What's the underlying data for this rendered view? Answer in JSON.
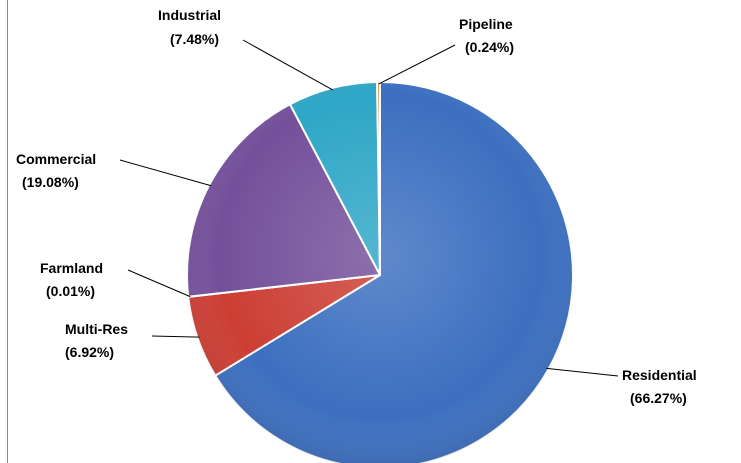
{
  "chart_data": {
    "type": "pie",
    "title": "",
    "slices": [
      {
        "name": "Residential",
        "percent_label": "(66.27%)",
        "value": 66.27,
        "color": "#3c6fc0"
      },
      {
        "name": "Multi-Res",
        "percent_label": "(6.92%)",
        "value": 6.92,
        "color": "#cc3e34"
      },
      {
        "name": "Farmland",
        "percent_label": "(0.01%)",
        "value": 0.01,
        "color": "#8fb24a"
      },
      {
        "name": "Commercial",
        "percent_label": "(19.08%)",
        "value": 19.08,
        "color": "#74509a"
      },
      {
        "name": "Industrial",
        "percent_label": "(7.48%)",
        "value": 7.48,
        "color": "#2ea6c6"
      },
      {
        "name": "Pipeline",
        "percent_label": "(0.24%)",
        "value": 0.24,
        "color": "#e8892b"
      }
    ],
    "legend": "none",
    "data_labels": "outside with leader lines"
  }
}
